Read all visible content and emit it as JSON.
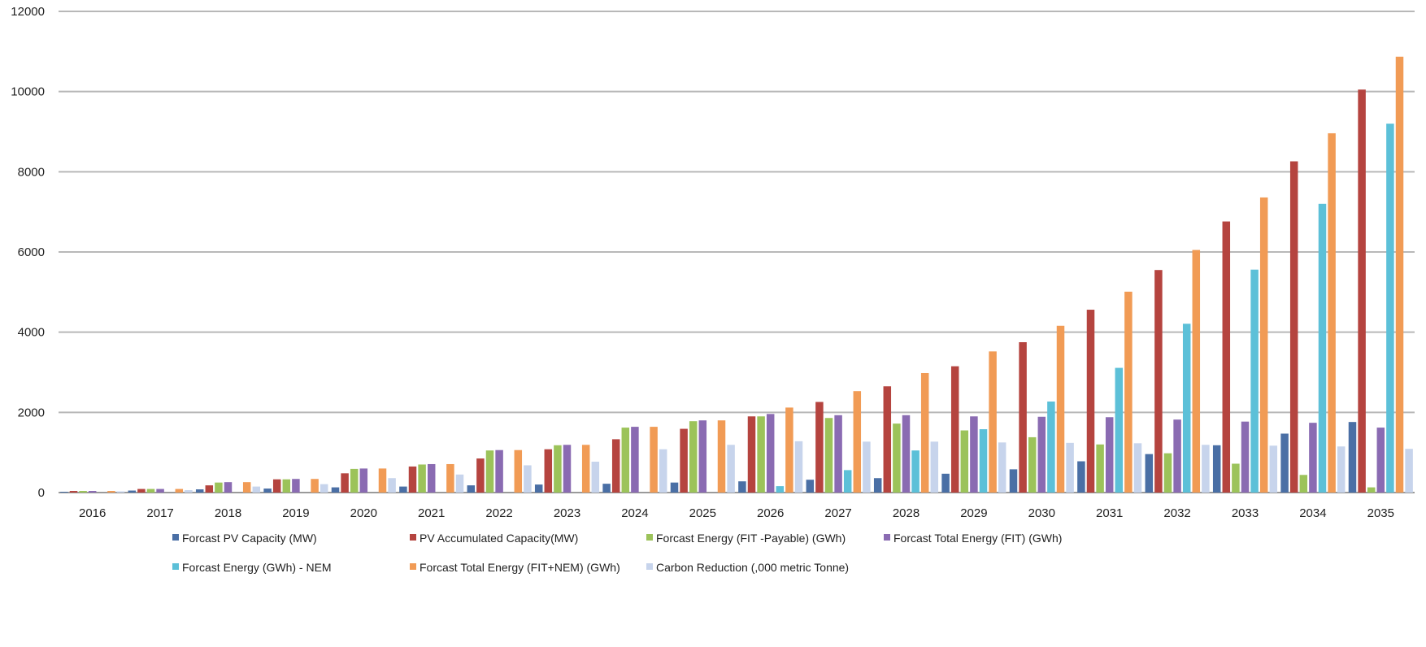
{
  "chart_data": {
    "type": "bar",
    "title": "",
    "xlabel": "",
    "ylabel": "",
    "ylim": [
      0,
      12000
    ],
    "yticks": [
      0,
      2000,
      4000,
      6000,
      8000,
      10000,
      12000
    ],
    "grid": "horizontal",
    "legend_position": "bottom",
    "categories": [
      "2016",
      "2017",
      "2018",
      "2019",
      "2020",
      "2021",
      "2022",
      "2023",
      "2024",
      "2025",
      "2026",
      "2027",
      "2028",
      "2029",
      "2030",
      "2031",
      "2032",
      "2033",
      "2034",
      "2035"
    ],
    "series": [
      {
        "name": "Forcast PV Capacity (MW)",
        "color": "#4a6fa5",
        "values": [
          20,
          50,
          80,
          100,
          130,
          150,
          180,
          200,
          220,
          250,
          280,
          320,
          360,
          470,
          580,
          780,
          960,
          1180,
          1470,
          1760
        ]
      },
      {
        "name": "PV Accumulated Capacity(MW)",
        "color": "#b5443f",
        "values": [
          40,
          90,
          180,
          330,
          480,
          650,
          850,
          1080,
          1330,
          1590,
          1900,
          2260,
          2650,
          3150,
          3750,
          4560,
          5550,
          6760,
          8260,
          10050
        ]
      },
      {
        "name": "Forcast Energy  (FIT -Payable) (GWh)",
        "color": "#9cc35a",
        "values": [
          40,
          90,
          250,
          330,
          590,
          700,
          1050,
          1180,
          1620,
          1780,
          1900,
          1860,
          1720,
          1550,
          1380,
          1200,
          980,
          720,
          440,
          130
        ]
      },
      {
        "name": "Forcast Total Energy  (FIT)  (GWh)",
        "color": "#8a6bb2",
        "values": [
          40,
          90,
          260,
          340,
          600,
          710,
          1060,
          1190,
          1640,
          1800,
          1960,
          1930,
          1930,
          1900,
          1890,
          1880,
          1820,
          1770,
          1740,
          1620
        ]
      },
      {
        "name": "Forcast Energy  (GWh) - NEM",
        "color": "#5cc0d8",
        "values": [
          0,
          0,
          0,
          0,
          0,
          0,
          0,
          0,
          0,
          0,
          160,
          560,
          1050,
          1580,
          2270,
          3110,
          4210,
          5560,
          7200,
          9200
        ]
      },
      {
        "name": "Forcast Total Energy (FIT+NEM) (GWh)",
        "color": "#f19b55",
        "values": [
          40,
          90,
          260,
          340,
          600,
          710,
          1060,
          1190,
          1640,
          1800,
          2120,
          2530,
          2980,
          3520,
          4160,
          5010,
          6050,
          7360,
          8960,
          10870
        ]
      },
      {
        "name": "Carbon Reduction (,000  metric Tonne)",
        "color": "#c7d4ec",
        "values": [
          30,
          60,
          150,
          210,
          360,
          450,
          680,
          770,
          1080,
          1190,
          1280,
          1270,
          1270,
          1250,
          1240,
          1230,
          1190,
          1170,
          1150,
          1090
        ]
      }
    ]
  }
}
